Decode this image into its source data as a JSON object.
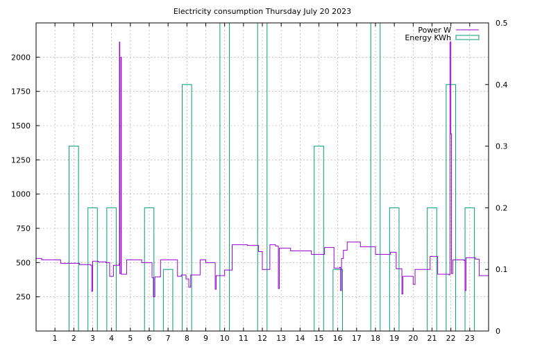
{
  "chart_data": {
    "type": "line",
    "title": "Electricity consumption Thursday July 20 2023",
    "x_ticks": [
      "1",
      "2",
      "3",
      "4",
      "5",
      "6",
      "7",
      "8",
      "9",
      "10",
      "11",
      "12",
      "13",
      "14",
      "15",
      "16",
      "17",
      "18",
      "19",
      "20",
      "21",
      "22",
      "23"
    ],
    "xlim": [
      0,
      24
    ],
    "y_left": {
      "ticks": [
        "250",
        "500",
        "750",
        "1000",
        "1250",
        "1500",
        "1750",
        "2000"
      ],
      "lim": [
        0,
        2250
      ]
    },
    "y_right": {
      "ticks": [
        "0",
        "0.1",
        "0.2",
        "0.3",
        "0.4",
        "0.5"
      ],
      "lim": [
        0,
        0.5
      ]
    },
    "grid": true,
    "legend_position": "top-right",
    "colors": {
      "power": "#9400d3",
      "energy": "#009e73"
    },
    "series": [
      {
        "name": "Power W",
        "axis": "left",
        "style": "step-line",
        "points": [
          [
            0.0,
            530
          ],
          [
            0.3,
            520
          ],
          [
            1.3,
            495
          ],
          [
            2.3,
            485
          ],
          [
            2.9,
            480
          ],
          [
            2.95,
            290
          ],
          [
            3.0,
            510
          ],
          [
            3.3,
            505
          ],
          [
            3.7,
            500
          ],
          [
            3.9,
            400
          ],
          [
            4.1,
            480
          ],
          [
            4.4,
            490
          ],
          [
            4.42,
            2110
          ],
          [
            4.44,
            420
          ],
          [
            4.5,
            2000
          ],
          [
            4.52,
            415
          ],
          [
            4.8,
            520
          ],
          [
            5.6,
            500
          ],
          [
            6.15,
            390
          ],
          [
            6.22,
            250
          ],
          [
            6.3,
            395
          ],
          [
            6.6,
            520
          ],
          [
            7.5,
            400
          ],
          [
            7.7,
            410
          ],
          [
            7.95,
            380
          ],
          [
            8.1,
            320
          ],
          [
            8.2,
            410
          ],
          [
            8.7,
            520
          ],
          [
            9.0,
            500
          ],
          [
            9.5,
            305
          ],
          [
            9.55,
            405
          ],
          [
            10.0,
            445
          ],
          [
            10.4,
            630
          ],
          [
            11.2,
            625
          ],
          [
            11.8,
            580
          ],
          [
            12.0,
            450
          ],
          [
            12.4,
            630
          ],
          [
            12.7,
            620
          ],
          [
            12.85,
            310
          ],
          [
            12.9,
            605
          ],
          [
            13.5,
            585
          ],
          [
            14.6,
            560
          ],
          [
            15.3,
            610
          ],
          [
            15.8,
            460
          ],
          [
            16.1,
            465
          ],
          [
            16.15,
            295
          ],
          [
            16.2,
            530
          ],
          [
            16.3,
            590
          ],
          [
            16.5,
            650
          ],
          [
            17.2,
            615
          ],
          [
            18.0,
            560
          ],
          [
            18.8,
            575
          ],
          [
            19.1,
            455
          ],
          [
            19.4,
            270
          ],
          [
            19.45,
            400
          ],
          [
            20.0,
            340
          ],
          [
            20.1,
            450
          ],
          [
            20.9,
            545
          ],
          [
            21.3,
            415
          ],
          [
            21.9,
            410
          ],
          [
            21.95,
            2110
          ],
          [
            22.0,
            1440
          ],
          [
            22.03,
            420
          ],
          [
            22.1,
            520
          ],
          [
            22.7,
            515
          ],
          [
            22.75,
            295
          ],
          [
            22.8,
            535
          ],
          [
            23.3,
            525
          ],
          [
            23.5,
            405
          ],
          [
            24.0,
            405
          ]
        ]
      },
      {
        "name": "Energy KWh",
        "axis": "right",
        "style": "boxes",
        "bars": [
          [
            1.75,
            2.25,
            0.3
          ],
          [
            2.75,
            3.25,
            0.2
          ],
          [
            3.75,
            4.25,
            0.2
          ],
          [
            5.75,
            6.25,
            0.2
          ],
          [
            6.75,
            7.25,
            0.1
          ],
          [
            7.75,
            8.25,
            0.4
          ],
          [
            9.75,
            10.25,
            0.6
          ],
          [
            11.75,
            12.25,
            0.6
          ],
          [
            14.75,
            15.25,
            0.3
          ],
          [
            15.75,
            16.25,
            0.1
          ],
          [
            17.75,
            18.25,
            0.6
          ],
          [
            18.75,
            19.25,
            0.2
          ],
          [
            20.75,
            21.25,
            0.2
          ],
          [
            21.75,
            22.25,
            0.4
          ],
          [
            22.75,
            23.25,
            0.2
          ]
        ]
      }
    ]
  }
}
